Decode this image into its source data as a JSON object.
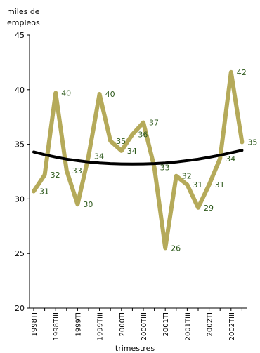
{
  "chart_data": {
    "type": "line",
    "ylabel": [
      "miles de",
      "empleos"
    ],
    "xlabel": "trimestres",
    "ylim": [
      20,
      45
    ],
    "yticks": [
      20,
      25,
      30,
      35,
      40,
      45
    ],
    "x_tick_labels": [
      "1998TI",
      "1998TIII",
      "1999TI",
      "1999TIII",
      "2000TI",
      "2000TIII",
      "2001TI",
      "2001TIII",
      "2002TI",
      "2002TIII"
    ],
    "series": [
      {
        "name": "",
        "color": "#b5aa5a",
        "values": [
          30.7,
          32.2,
          39.7,
          32.6,
          29.5,
          33.9,
          39.6,
          35.3,
          34.4,
          35.9,
          37.0,
          32.9,
          25.5,
          32.1,
          31.3,
          29.2,
          31.3,
          33.7,
          41.6,
          35.2
        ],
        "labels": [
          "31",
          "32",
          "40",
          "33",
          "30",
          "34",
          "40",
          "35",
          "34",
          "36",
          "37",
          "33",
          "26",
          "32",
          "31",
          "29",
          "31",
          "34",
          "42",
          "35"
        ]
      },
      {
        "name": "",
        "color": "#000000",
        "values": [
          34.3,
          34.05,
          33.83,
          33.64,
          33.5,
          33.38,
          33.29,
          33.23,
          33.2,
          33.19,
          33.2,
          33.23,
          33.29,
          33.38,
          33.5,
          33.64,
          33.81,
          34.0,
          34.22,
          34.45
        ]
      }
    ]
  }
}
